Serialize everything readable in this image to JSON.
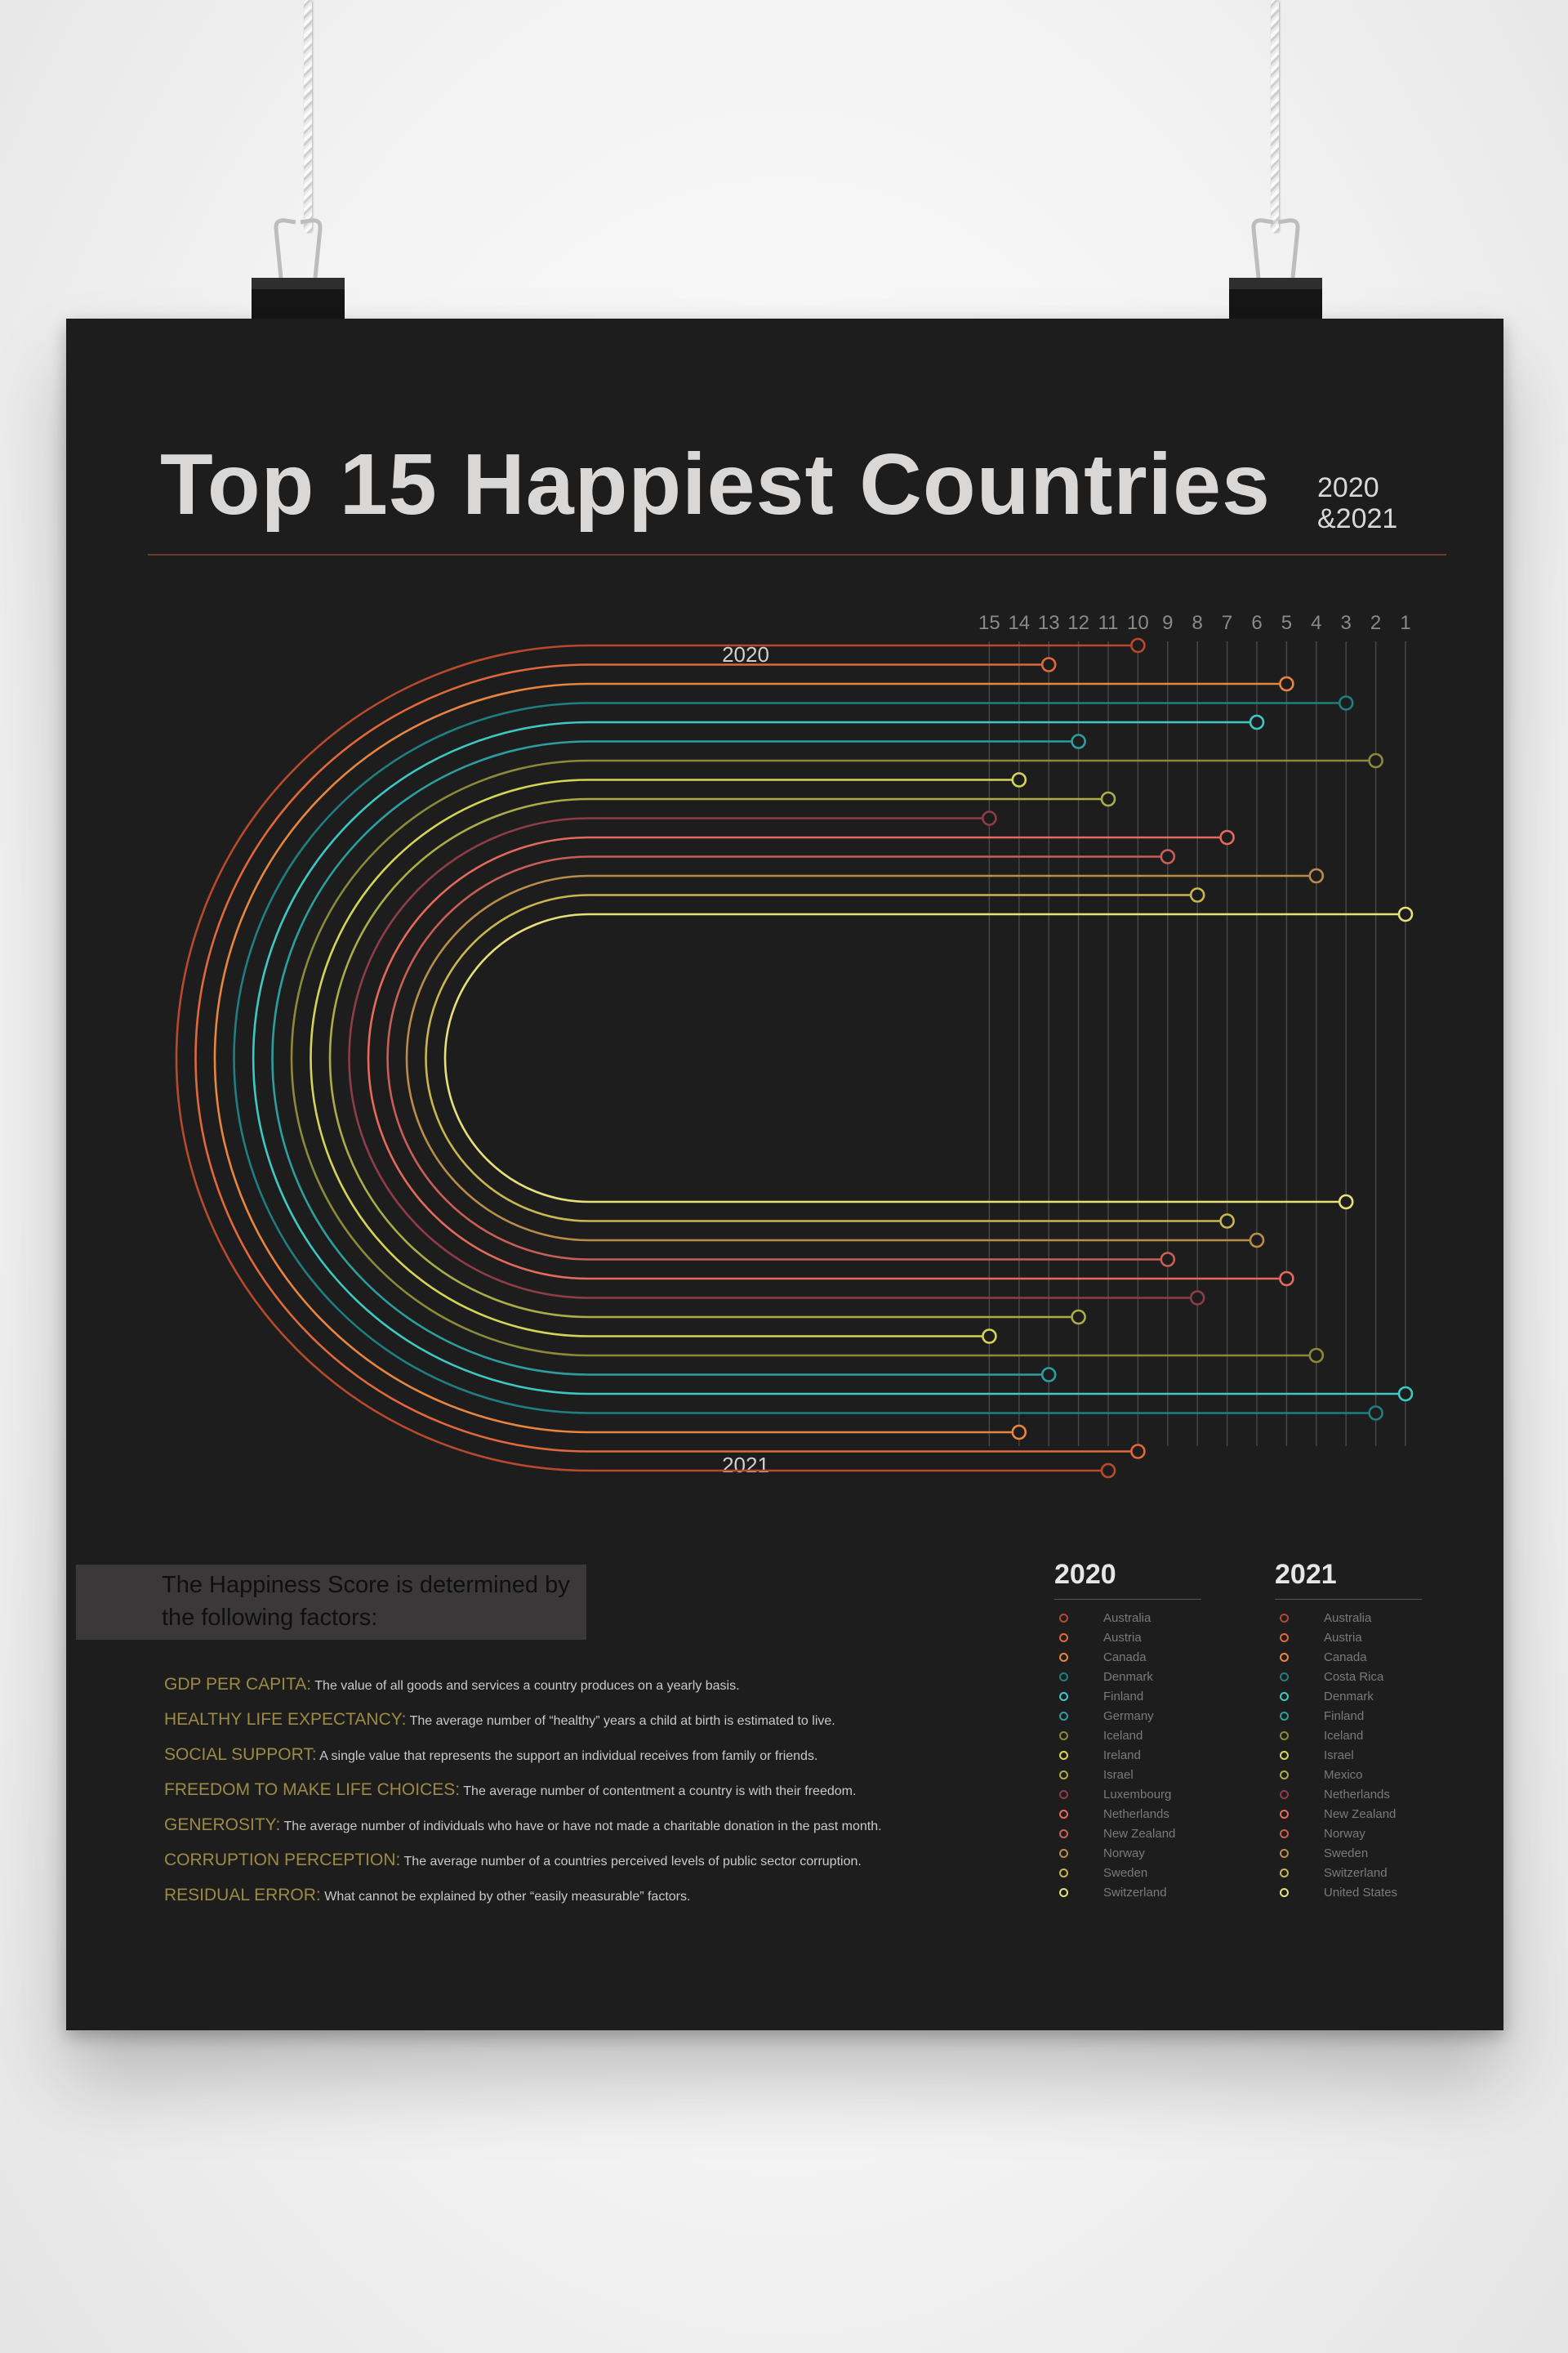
{
  "title": "Top 15 Happiest Countries",
  "subtitle_line1": "2020",
  "subtitle_line2": "&2021",
  "info_box_text": "The Happiness Score is determined by the following factors:",
  "factors": [
    {
      "name": "GDP PER CAPITA:",
      "desc": "The value of all goods and services a country produces on a yearly basis."
    },
    {
      "name": "HEALTHY LIFE EXPECTANCY:",
      "desc": "The average number of “healthy” years a child at birth is estimated to live."
    },
    {
      "name": "SOCIAL SUPPORT:",
      "desc": "A single value that represents the support an individual receives from family or friends."
    },
    {
      "name": "FREEDOM TO MAKE LIFE CHOICES:",
      "desc": "The average number of contentment a country is with their freedom."
    },
    {
      "name": "GENEROSITY:",
      "desc": "The average number of individuals who have or have not made a charitable donation in the past month."
    },
    {
      "name": "CORRUPTION PERCEPTION:",
      "desc": "The average number of a countries perceived levels of public sector corruption."
    },
    {
      "name": "RESIDUAL ERROR:",
      "desc": "What cannot be explained by other “easily measurable” factors."
    }
  ],
  "chart_data": {
    "type": "line",
    "top_label": "2020",
    "bottom_label": "2021",
    "rank_axis": [
      "15",
      "14",
      "13",
      "12",
      "11",
      "10",
      "9",
      "8",
      "7",
      "6",
      "5",
      "4",
      "3",
      "2",
      "1"
    ],
    "series_2020": [
      {
        "country": "Australia",
        "rank": 10,
        "color": "#b8492c"
      },
      {
        "country": "Austria",
        "rank": 13,
        "color": "#e0683a"
      },
      {
        "country": "Canada",
        "rank": 5,
        "color": "#e8863e"
      },
      {
        "country": "Denmark",
        "rank": 3,
        "color": "#1e7f80"
      },
      {
        "country": "Finland",
        "rank": 6,
        "color": "#3dc8c4"
      },
      {
        "country": "Germany",
        "rank": 12,
        "color": "#2b9ea0"
      },
      {
        "country": "Iceland",
        "rank": 2,
        "color": "#8b8a3a"
      },
      {
        "country": "Ireland",
        "rank": 14,
        "color": "#d6d456"
      },
      {
        "country": "Israel",
        "rank": 11,
        "color": "#a9ad47"
      },
      {
        "country": "Luxembourg",
        "rank": 15,
        "color": "#8d3c48"
      },
      {
        "country": "Netherlands",
        "rank": 7,
        "color": "#e46a5c"
      },
      {
        "country": "New Zealand",
        "rank": 9,
        "color": "#c75f55"
      },
      {
        "country": "Norway",
        "rank": 4,
        "color": "#b98d49"
      },
      {
        "country": "Sweden",
        "rank": 8,
        "color": "#c9b64e"
      },
      {
        "country": "Switzerland",
        "rank": 1,
        "color": "#e6df7a"
      }
    ],
    "series_2021": [
      {
        "country": "Australia",
        "rank": 11,
        "color": "#b8492c"
      },
      {
        "country": "Austria",
        "rank": 10,
        "color": "#e0683a"
      },
      {
        "country": "Canada",
        "rank": 14,
        "color": "#e8863e"
      },
      {
        "country": "Costa Rica",
        "rank": 2,
        "color": "#1e7f80"
      },
      {
        "country": "Denmark",
        "rank": 1,
        "color": "#3dc8c4"
      },
      {
        "country": "Finland",
        "rank": 13,
        "color": "#2b9ea0"
      },
      {
        "country": "Iceland",
        "rank": 4,
        "color": "#8b8a3a"
      },
      {
        "country": "Israel",
        "rank": 15,
        "color": "#d6d456"
      },
      {
        "country": "Mexico",
        "rank": 12,
        "color": "#a9ad47"
      },
      {
        "country": "Netherlands",
        "rank": 8,
        "color": "#8d3c48"
      },
      {
        "country": "New Zealand",
        "rank": 5,
        "color": "#e46a5c"
      },
      {
        "country": "Norway",
        "rank": 9,
        "color": "#c75f55"
      },
      {
        "country": "Sweden",
        "rank": 6,
        "color": "#b98d49"
      },
      {
        "country": "Switzerland",
        "rank": 7,
        "color": "#c9b64e"
      },
      {
        "country": "United States",
        "rank": 3,
        "color": "#e6df7a"
      }
    ]
  },
  "legend_2020": {
    "title": "2020",
    "items": [
      {
        "name": "Australia",
        "color": "#b8492c"
      },
      {
        "name": "Austria",
        "color": "#e0683a"
      },
      {
        "name": "Canada",
        "color": "#e8863e"
      },
      {
        "name": "Denmark",
        "color": "#1e7f80"
      },
      {
        "name": "Finland",
        "color": "#3dc8c4"
      },
      {
        "name": "Germany",
        "color": "#2b9ea0"
      },
      {
        "name": "Iceland",
        "color": "#8b8a3a"
      },
      {
        "name": "Ireland",
        "color": "#d6d456"
      },
      {
        "name": "Israel",
        "color": "#a9ad47"
      },
      {
        "name": "Luxembourg",
        "color": "#8d3c48"
      },
      {
        "name": "Netherlands",
        "color": "#e46a5c"
      },
      {
        "name": "New Zealand",
        "color": "#c75f55"
      },
      {
        "name": "Norway",
        "color": "#b98d49"
      },
      {
        "name": "Sweden",
        "color": "#c9b64e"
      },
      {
        "name": "Switzerland",
        "color": "#e6df7a"
      }
    ]
  },
  "legend_2021": {
    "title": "2021",
    "items": [
      {
        "name": "Australia",
        "color": "#b8492c"
      },
      {
        "name": "Austria",
        "color": "#e0683a"
      },
      {
        "name": "Canada",
        "color": "#e8863e"
      },
      {
        "name": "Costa Rica",
        "color": "#1e7f80"
      },
      {
        "name": "Denmark",
        "color": "#3dc8c4"
      },
      {
        "name": "Finland",
        "color": "#2b9ea0"
      },
      {
        "name": "Iceland",
        "color": "#8b8a3a"
      },
      {
        "name": "Israel",
        "color": "#d6d456"
      },
      {
        "name": "Mexico",
        "color": "#a9ad47"
      },
      {
        "name": "Netherlands",
        "color": "#8d3c48"
      },
      {
        "name": "New Zealand",
        "color": "#e46a5c"
      },
      {
        "name": "Norway",
        "color": "#c75f55"
      },
      {
        "name": "Sweden",
        "color": "#b98d49"
      },
      {
        "name": "Switzerland",
        "color": "#c9b64e"
      },
      {
        "name": "United States",
        "color": "#e6df7a"
      }
    ]
  }
}
